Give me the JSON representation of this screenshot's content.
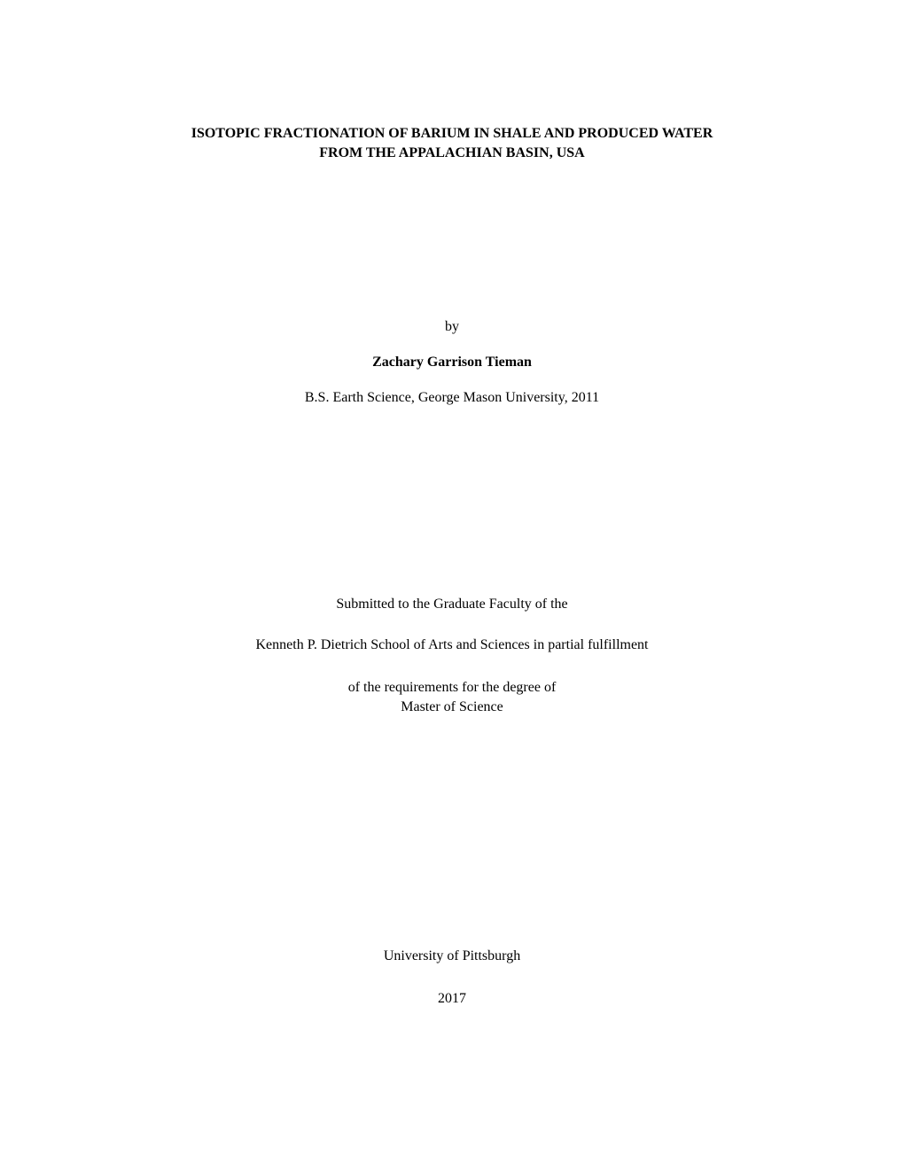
{
  "title": {
    "line1": "ISOTOPIC FRACTIONATION OF BARIUM IN SHALE AND PRODUCED WATER",
    "line2": "FROM THE APPALACHIAN BASIN, USA"
  },
  "by": "by",
  "author": "Zachary Garrison Tieman",
  "prior_degree": "B.S. Earth Science, George Mason University, 2011",
  "submitted": "Submitted to the Graduate Faculty of the",
  "school": "Kenneth P. Dietrich School of Arts and Sciences in partial fulfillment",
  "requirements": {
    "line1": "of the requirements for the degree of",
    "line2": "Master of Science"
  },
  "university": "University of Pittsburgh",
  "year": "2017"
}
